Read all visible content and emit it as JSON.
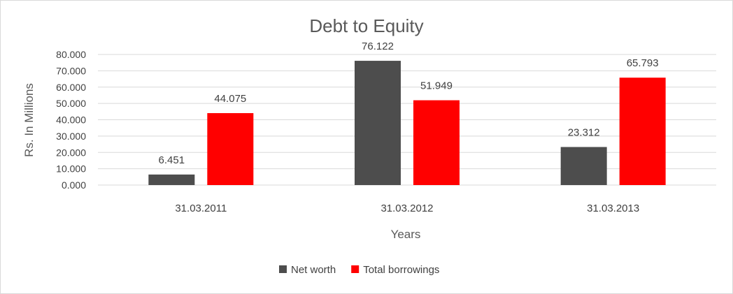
{
  "chart_data": {
    "type": "bar",
    "title": "Debt to Equity",
    "xlabel": "Years",
    "ylabel": "Rs. In Millions",
    "categories": [
      "31.03.2011",
      "31.03.2012",
      "31.03.2013"
    ],
    "series": [
      {
        "name": "Net worth",
        "values": [
          6.451,
          76.122,
          23.312
        ],
        "color": "#4d4d4d"
      },
      {
        "name": "Total borrowings",
        "values": [
          44.075,
          51.949,
          65.793
        ],
        "color": "#ff0000"
      }
    ],
    "ylim": [
      0,
      80
    ],
    "yticks": [
      "0.000",
      "10.000",
      "20.000",
      "30.000",
      "40.000",
      "50.000",
      "60.000",
      "70.000",
      "80.000"
    ],
    "grid": true,
    "legend_position": "bottom",
    "gridline_color": "#d9d9d9"
  }
}
